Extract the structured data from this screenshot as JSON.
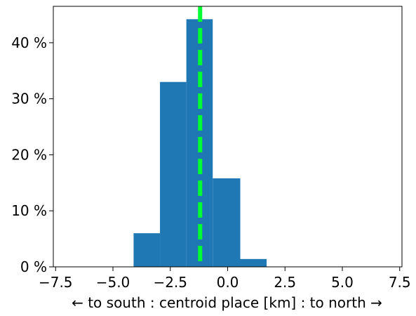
{
  "chart_data": {
    "type": "histogram",
    "title": "",
    "xlabel": "← to south : centroid place [km] : to north →",
    "ylabel": "",
    "xlim": [
      -7.6,
      7.6
    ],
    "ylim": [
      0,
      46.5
    ],
    "x_ticks": [
      {
        "value": -7.5,
        "label": "−7.5"
      },
      {
        "value": -5.0,
        "label": "−5.0"
      },
      {
        "value": -2.5,
        "label": "−2.5"
      },
      {
        "value": 0.0,
        "label": "0.0"
      },
      {
        "value": 2.5,
        "label": "2.5"
      },
      {
        "value": 5.0,
        "label": "5.0"
      },
      {
        "value": 7.5,
        "label": "7.5"
      }
    ],
    "y_ticks": [
      {
        "value": 0,
        "label": "0 %"
      },
      {
        "value": 10,
        "label": "10 %"
      },
      {
        "value": 20,
        "label": "20 %"
      },
      {
        "value": 30,
        "label": "30 %"
      },
      {
        "value": 40,
        "label": "40 %"
      }
    ],
    "bins": [
      {
        "x0": -4.1,
        "x1": -2.95,
        "value": 6.0
      },
      {
        "x0": -2.95,
        "x1": -1.8,
        "value": 33.0
      },
      {
        "x0": -1.8,
        "x1": -0.65,
        "value": 44.2
      },
      {
        "x0": -0.65,
        "x1": 0.55,
        "value": 15.8
      },
      {
        "x0": 0.55,
        "x1": 1.7,
        "value": 1.4
      }
    ],
    "bar_color": "#1f77b4",
    "reference_line": {
      "x": -1.2,
      "color": "#00ff33",
      "style": "dashed"
    },
    "grid": false,
    "legend": "none"
  }
}
